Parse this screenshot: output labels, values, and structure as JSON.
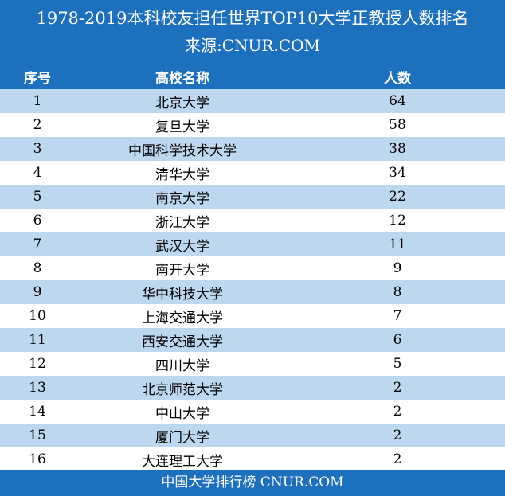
{
  "header": {
    "title": "1978-2019本科校友担任世界TOP10大学正教授人数排名",
    "source": "来源:CNUR.COM"
  },
  "table": {
    "columns": [
      "序号",
      "高校名称",
      "人数"
    ],
    "rows": [
      {
        "rank": "1",
        "name": "北京大学",
        "count": "64"
      },
      {
        "rank": "2",
        "name": "复旦大学",
        "count": "58"
      },
      {
        "rank": "3",
        "name": "中国科学技术大学",
        "count": "38"
      },
      {
        "rank": "4",
        "name": "清华大学",
        "count": "34"
      },
      {
        "rank": "5",
        "name": "南京大学",
        "count": "22"
      },
      {
        "rank": "6",
        "name": "浙江大学",
        "count": "12"
      },
      {
        "rank": "7",
        "name": "武汉大学",
        "count": "11"
      },
      {
        "rank": "8",
        "name": "南开大学",
        "count": "9"
      },
      {
        "rank": "9",
        "name": "华中科技大学",
        "count": "8"
      },
      {
        "rank": "10",
        "name": "上海交通大学",
        "count": "7"
      },
      {
        "rank": "11",
        "name": "西安交通大学",
        "count": "6"
      },
      {
        "rank": "12",
        "name": "四川大学",
        "count": "5"
      },
      {
        "rank": "13",
        "name": "北京师范大学",
        "count": "2"
      },
      {
        "rank": "14",
        "name": "中山大学",
        "count": "2"
      },
      {
        "rank": "15",
        "name": "厦门大学",
        "count": "2"
      },
      {
        "rank": "16",
        "name": "大连理工大学",
        "count": "2"
      }
    ]
  },
  "footer": {
    "text": "中国大学排行榜  CNUR.COM"
  },
  "colors": {
    "header_blue": "#1d70bd",
    "row_alt": "#bdd7ee",
    "row_plain": "#ffffff"
  }
}
